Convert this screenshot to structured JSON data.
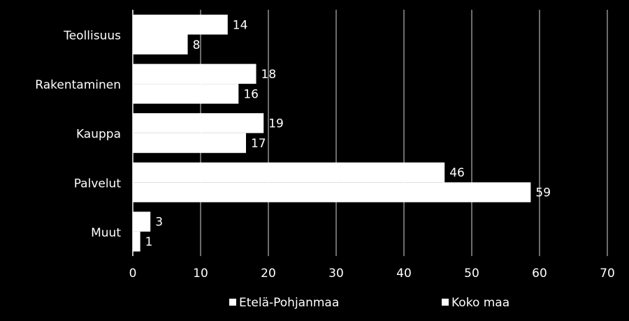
{
  "chart_data": {
    "type": "bar",
    "orientation": "horizontal",
    "categories": [
      "Teollisuus",
      "Rakentaminen",
      "Kauppa",
      "Palvelut",
      "Muut"
    ],
    "series": [
      {
        "name": "Etelä-Pohjanmaa",
        "values": [
          14,
          18,
          19,
          46,
          3
        ],
        "labels": [
          "14",
          "18",
          "19",
          "46",
          "3"
        ],
        "color": "#ffffff"
      },
      {
        "name": "Koko maa",
        "values": [
          8,
          16,
          17,
          59,
          1
        ],
        "labels": [
          "8",
          "16",
          "17",
          "59",
          "1"
        ],
        "color": "#ffffff"
      }
    ],
    "bar_values_estimated": [
      [
        14,
        18.2,
        19.3,
        46,
        2.6
      ],
      [
        8.1,
        15.6,
        16.7,
        58.7,
        1.1
      ]
    ],
    "xlim": [
      0,
      70
    ],
    "xticks": [
      "0",
      "10",
      "20",
      "30",
      "40",
      "50",
      "60",
      "70"
    ],
    "grid": "vertical",
    "legend": "bottom",
    "colors": {
      "background": "#000000",
      "bar": "#ffffff",
      "text": "#ffffff",
      "grid": "#ffffff"
    }
  }
}
